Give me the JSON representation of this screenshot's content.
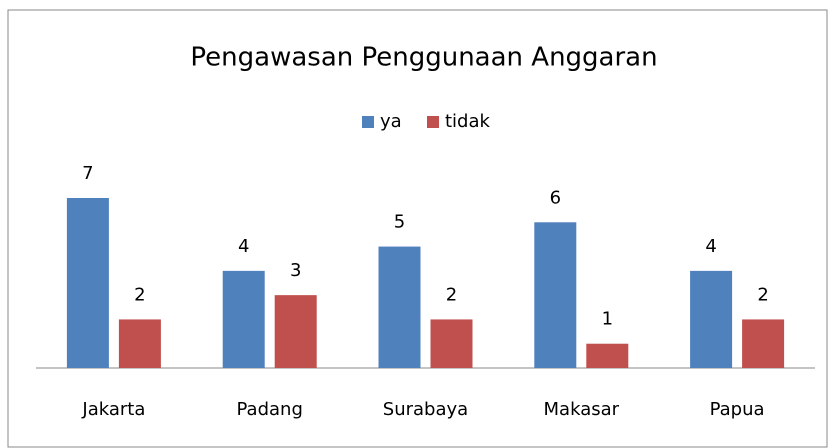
{
  "chart_data": {
    "type": "bar",
    "title": "Pengawasan Penggunaan Anggaran",
    "categories": [
      "Jakarta",
      "Padang",
      "Surabaya",
      "Makasar",
      "Papua"
    ],
    "series": [
      {
        "name": "ya",
        "color": "#4f81bd",
        "values": [
          7,
          4,
          5,
          6,
          4
        ]
      },
      {
        "name": "tidak",
        "color": "#c0504d",
        "values": [
          2,
          3,
          2,
          1,
          2
        ]
      }
    ],
    "legend": "top",
    "grid": false
  }
}
